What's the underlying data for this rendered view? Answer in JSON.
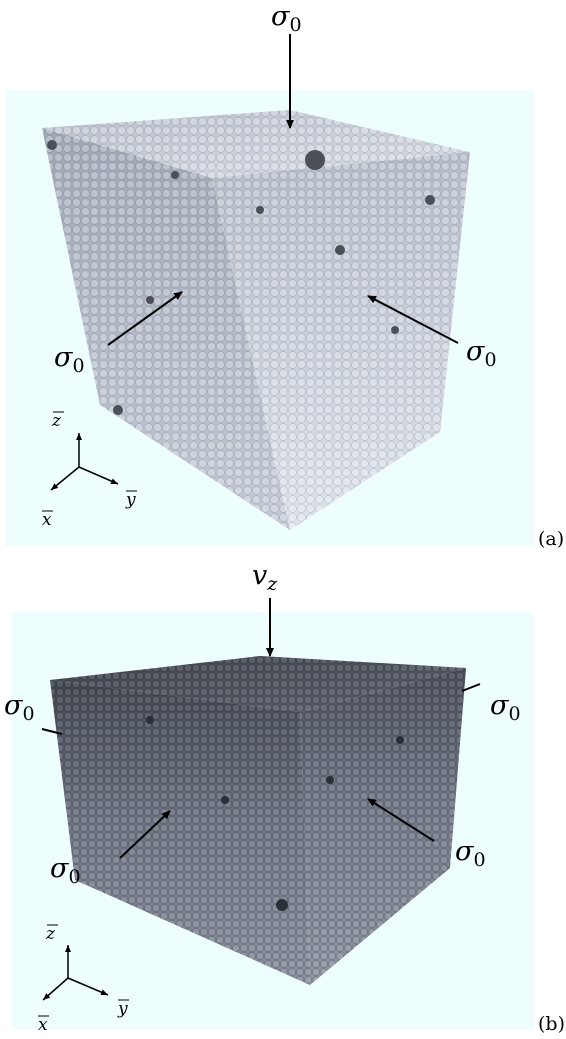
{
  "panel_a": {
    "label": "(a)",
    "top_load": {
      "symbol": "σ",
      "subscript": "0"
    },
    "left_load": {
      "symbol": "σ",
      "subscript": "0"
    },
    "right_load": {
      "symbol": "σ",
      "subscript": "0"
    },
    "axes": {
      "z": "z",
      "x": "x",
      "y": "y"
    },
    "background_color": "#eefefe",
    "particle_tone": "light grey"
  },
  "panel_b": {
    "label": "(b)",
    "top_load": {
      "symbol": "v",
      "subscript": "z"
    },
    "side_left": {
      "symbol": "σ",
      "subscript": "0"
    },
    "side_right": {
      "symbol": "σ",
      "subscript": "0"
    },
    "left_load": {
      "symbol": "σ",
      "subscript": "0"
    },
    "right_load": {
      "symbol": "σ",
      "subscript": "0"
    },
    "axes": {
      "z": "z",
      "x": "x",
      "y": "y"
    },
    "background_color": "#eefefe",
    "particle_tone": "dark grey"
  }
}
